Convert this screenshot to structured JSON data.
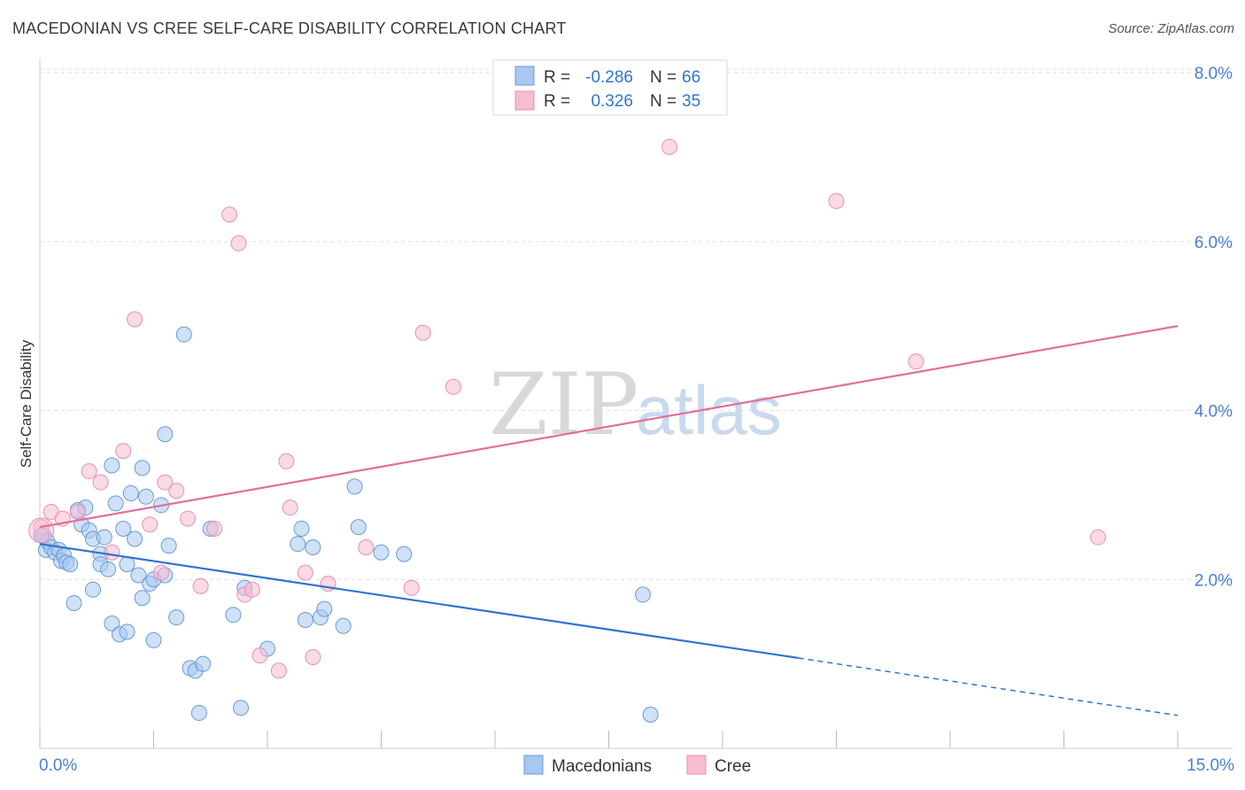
{
  "header": {
    "title": "MACEDONIAN VS CREE SELF-CARE DISABILITY CORRELATION CHART",
    "source": "Source: ZipAtlas.com"
  },
  "watermark": {
    "zip": "ZIP",
    "atlas": "atlas"
  },
  "colors": {
    "blue_fill": "#a8c8f0",
    "blue_stroke": "#6a9ad8",
    "blue_line": "#2f74d0",
    "pink_fill": "#f6bcd0",
    "pink_stroke": "#e890b0",
    "pink_line": "#e0709a",
    "tick_text": "#4a7fd4",
    "grid": "#dddddd"
  },
  "chart_data": {
    "type": "scatter",
    "title": "MACEDONIAN VS CREE SELF-CARE DISABILITY CORRELATION CHART",
    "xlabel": "",
    "ylabel": "Self-Care Disability",
    "xlim": [
      0,
      15
    ],
    "ylim": [
      0,
      8.0
    ],
    "x_tick_labels": [
      "0.0%",
      "15.0%"
    ],
    "y_ticks": [
      2.0,
      4.0,
      6.0,
      8.0
    ],
    "y_tick_labels": [
      "2.0%",
      "4.0%",
      "6.0%",
      "8.0%"
    ],
    "grid": true,
    "legend_stats": [
      {
        "r_label": "R =",
        "r_value": "-0.286",
        "n_label": "N =",
        "n_value": "66"
      },
      {
        "r_label": "R =",
        "r_value": "0.326",
        "n_label": "N =",
        "n_value": "35"
      }
    ],
    "series": [
      {
        "name": "Macedonians",
        "color": "#a8c8f0",
        "trend": {
          "x": [
            0,
            10.0
          ],
          "y": [
            2.42,
            1.07
          ],
          "dashed_to": [
            15,
            0.39
          ]
        },
        "points": [
          [
            0.05,
            2.52
          ],
          [
            0.08,
            2.35
          ],
          [
            0.1,
            2.45
          ],
          [
            0.15,
            2.38
          ],
          [
            0.2,
            2.32
          ],
          [
            0.25,
            2.35
          ],
          [
            0.28,
            2.22
          ],
          [
            0.32,
            2.28
          ],
          [
            0.35,
            2.2
          ],
          [
            0.4,
            2.18
          ],
          [
            0.45,
            1.72
          ],
          [
            0.5,
            2.82
          ],
          [
            0.55,
            2.65
          ],
          [
            0.6,
            2.85
          ],
          [
            0.65,
            2.58
          ],
          [
            0.7,
            2.48
          ],
          [
            0.7,
            1.88
          ],
          [
            0.8,
            2.3
          ],
          [
            0.8,
            2.18
          ],
          [
            0.85,
            2.5
          ],
          [
            0.9,
            2.12
          ],
          [
            0.95,
            3.35
          ],
          [
            0.95,
            1.48
          ],
          [
            1.0,
            2.9
          ],
          [
            1.05,
            1.35
          ],
          [
            1.1,
            2.6
          ],
          [
            1.15,
            2.18
          ],
          [
            1.15,
            1.38
          ],
          [
            1.2,
            3.02
          ],
          [
            1.25,
            2.48
          ],
          [
            1.3,
            2.05
          ],
          [
            1.35,
            3.32
          ],
          [
            1.35,
            1.78
          ],
          [
            1.4,
            2.98
          ],
          [
            1.45,
            1.95
          ],
          [
            1.5,
            2.0
          ],
          [
            1.5,
            1.28
          ],
          [
            1.6,
            2.88
          ],
          [
            1.65,
            2.05
          ],
          [
            1.65,
            3.72
          ],
          [
            1.7,
            2.4
          ],
          [
            1.8,
            1.55
          ],
          [
            1.9,
            4.9
          ],
          [
            1.98,
            0.95
          ],
          [
            2.05,
            0.92
          ],
          [
            2.1,
            0.42
          ],
          [
            2.15,
            1.0
          ],
          [
            2.25,
            2.6
          ],
          [
            2.55,
            1.58
          ],
          [
            2.65,
            0.48
          ],
          [
            2.7,
            1.9
          ],
          [
            3.0,
            1.18
          ],
          [
            3.4,
            2.42
          ],
          [
            3.45,
            2.6
          ],
          [
            3.5,
            1.52
          ],
          [
            3.6,
            2.38
          ],
          [
            3.7,
            1.55
          ],
          [
            3.75,
            1.65
          ],
          [
            4.0,
            1.45
          ],
          [
            4.15,
            3.1
          ],
          [
            4.2,
            2.62
          ],
          [
            4.5,
            2.32
          ],
          [
            4.8,
            2.3
          ],
          [
            7.95,
            1.82
          ],
          [
            8.05,
            0.4
          ],
          [
            0.02,
            2.52
          ]
        ]
      },
      {
        "name": "Cree",
        "color": "#f6bcd0",
        "trend": {
          "x": [
            0,
            15
          ],
          "y": [
            2.62,
            5.0
          ]
        },
        "points": [
          [
            0.02,
            2.62
          ],
          [
            0.15,
            2.8
          ],
          [
            0.3,
            2.72
          ],
          [
            0.5,
            2.8
          ],
          [
            0.65,
            3.28
          ],
          [
            0.8,
            3.15
          ],
          [
            0.95,
            2.32
          ],
          [
            1.1,
            3.52
          ],
          [
            1.25,
            5.08
          ],
          [
            1.45,
            2.65
          ],
          [
            1.6,
            2.08
          ],
          [
            1.65,
            3.15
          ],
          [
            1.8,
            3.05
          ],
          [
            1.95,
            2.72
          ],
          [
            2.12,
            1.92
          ],
          [
            2.3,
            2.6
          ],
          [
            2.5,
            6.32
          ],
          [
            2.62,
            5.98
          ],
          [
            2.7,
            1.82
          ],
          [
            2.8,
            1.88
          ],
          [
            2.9,
            1.1
          ],
          [
            3.15,
            0.92
          ],
          [
            3.25,
            3.4
          ],
          [
            3.3,
            2.85
          ],
          [
            3.5,
            2.08
          ],
          [
            3.6,
            1.08
          ],
          [
            3.8,
            1.95
          ],
          [
            4.3,
            2.38
          ],
          [
            4.9,
            1.9
          ],
          [
            5.05,
            4.92
          ],
          [
            5.45,
            4.28
          ],
          [
            8.3,
            7.12
          ],
          [
            10.5,
            6.48
          ],
          [
            11.55,
            4.58
          ],
          [
            13.95,
            2.5
          ]
        ]
      }
    ]
  },
  "legend_bottom": [
    "Macedonians",
    "Cree"
  ]
}
